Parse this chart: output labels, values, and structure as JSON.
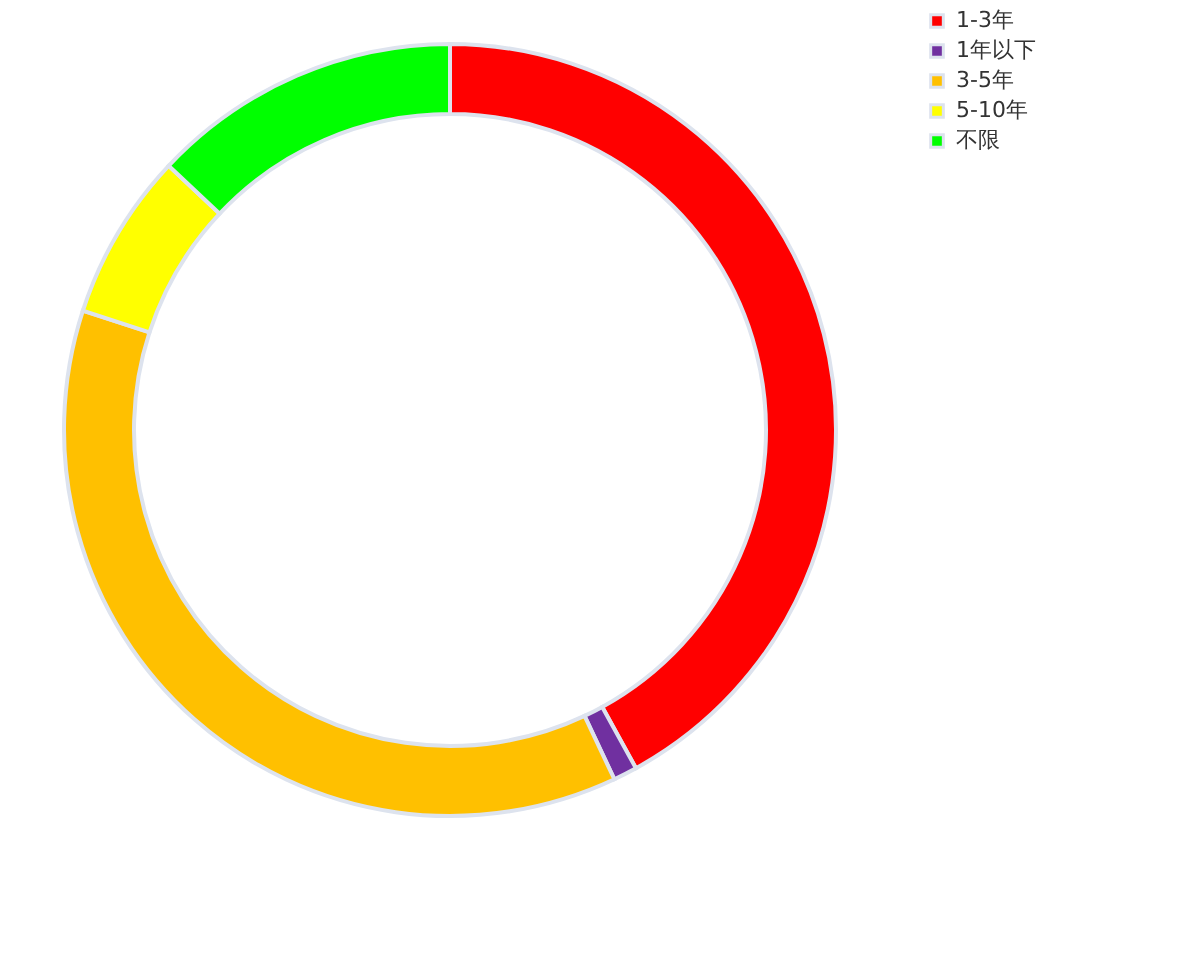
{
  "chart_data": {
    "type": "donut",
    "categories": [
      "1-3年",
      "1年以下",
      "3-5年",
      "5-10年",
      "不限"
    ],
    "values": [
      42,
      1,
      37,
      7,
      13
    ],
    "colors": [
      "#ff0000",
      "#7030a0",
      "#ffc000",
      "#ffff00",
      "#00ff00"
    ],
    "legend": "right"
  }
}
